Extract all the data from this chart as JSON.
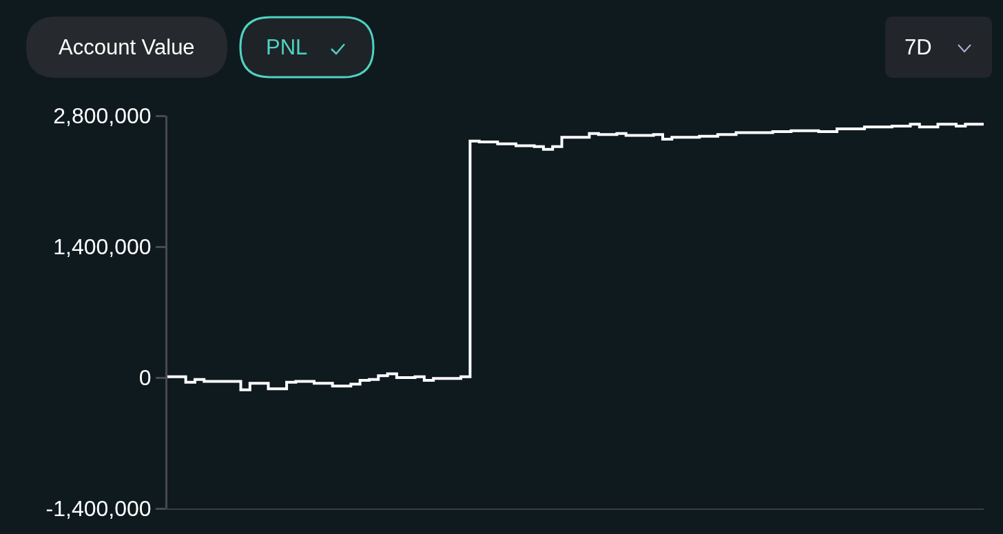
{
  "chart_data": {
    "type": "step",
    "categories": [
      null,
      null,
      null,
      null,
      null,
      null,
      null,
      null,
      null,
      null,
      null,
      null,
      null,
      null,
      null,
      null,
      null,
      null,
      null,
      null,
      null,
      null,
      null,
      null,
      null,
      null,
      null,
      null,
      null,
      null,
      null,
      null,
      null,
      null,
      null,
      null,
      null,
      null,
      null,
      null,
      null,
      null,
      null,
      null,
      null,
      null,
      null,
      null,
      null,
      null,
      null,
      null,
      null,
      null,
      null,
      null,
      null,
      null,
      null,
      null,
      null,
      null,
      null,
      null,
      null,
      null,
      null,
      null,
      null,
      null,
      null,
      null,
      null,
      null,
      null,
      null,
      null,
      null,
      null,
      null,
      null,
      null,
      null,
      null,
      null,
      null,
      null,
      null,
      null,
      null
    ],
    "series": [
      {
        "color": "#ffffff",
        "values": [
          10000,
          10000,
          -50000,
          -20000,
          -40000,
          -40000,
          -40000,
          -40000,
          -130000,
          -60000,
          -60000,
          -120000,
          -120000,
          -50000,
          -40000,
          -40000,
          -60000,
          -60000,
          -90000,
          -90000,
          -70000,
          -30000,
          -20000,
          20000,
          40000,
          0,
          0,
          10000,
          -30000,
          -10000,
          -10000,
          -10000,
          10000,
          2530000,
          2520000,
          2520000,
          2500000,
          2500000,
          2480000,
          2480000,
          2470000,
          2440000,
          2470000,
          2570000,
          2570000,
          2570000,
          2610000,
          2600000,
          2600000,
          2610000,
          2590000,
          2590000,
          2590000,
          2600000,
          2550000,
          2570000,
          2570000,
          2570000,
          2580000,
          2580000,
          2600000,
          2600000,
          2620000,
          2620000,
          2620000,
          2620000,
          2630000,
          2630000,
          2640000,
          2640000,
          2640000,
          2630000,
          2630000,
          2660000,
          2660000,
          2660000,
          2680000,
          2680000,
          2680000,
          2690000,
          2690000,
          2710000,
          2680000,
          2680000,
          2710000,
          2710000,
          2690000,
          2710000,
          2710000,
          2710000
        ]
      }
    ],
    "ylim": [
      -1400000,
      2800000
    ],
    "yticks": [
      {
        "value": -1400000,
        "label": "-1,400,000"
      },
      0,
      {
        "value": 1400000,
        "label": "1,400,000"
      },
      {
        "value": 2800000,
        "label": "2,800,000"
      }
    ],
    "tick_labels": "y",
    "annotations": [
      "Account Value",
      "PNL",
      "7D"
    ]
  }
}
